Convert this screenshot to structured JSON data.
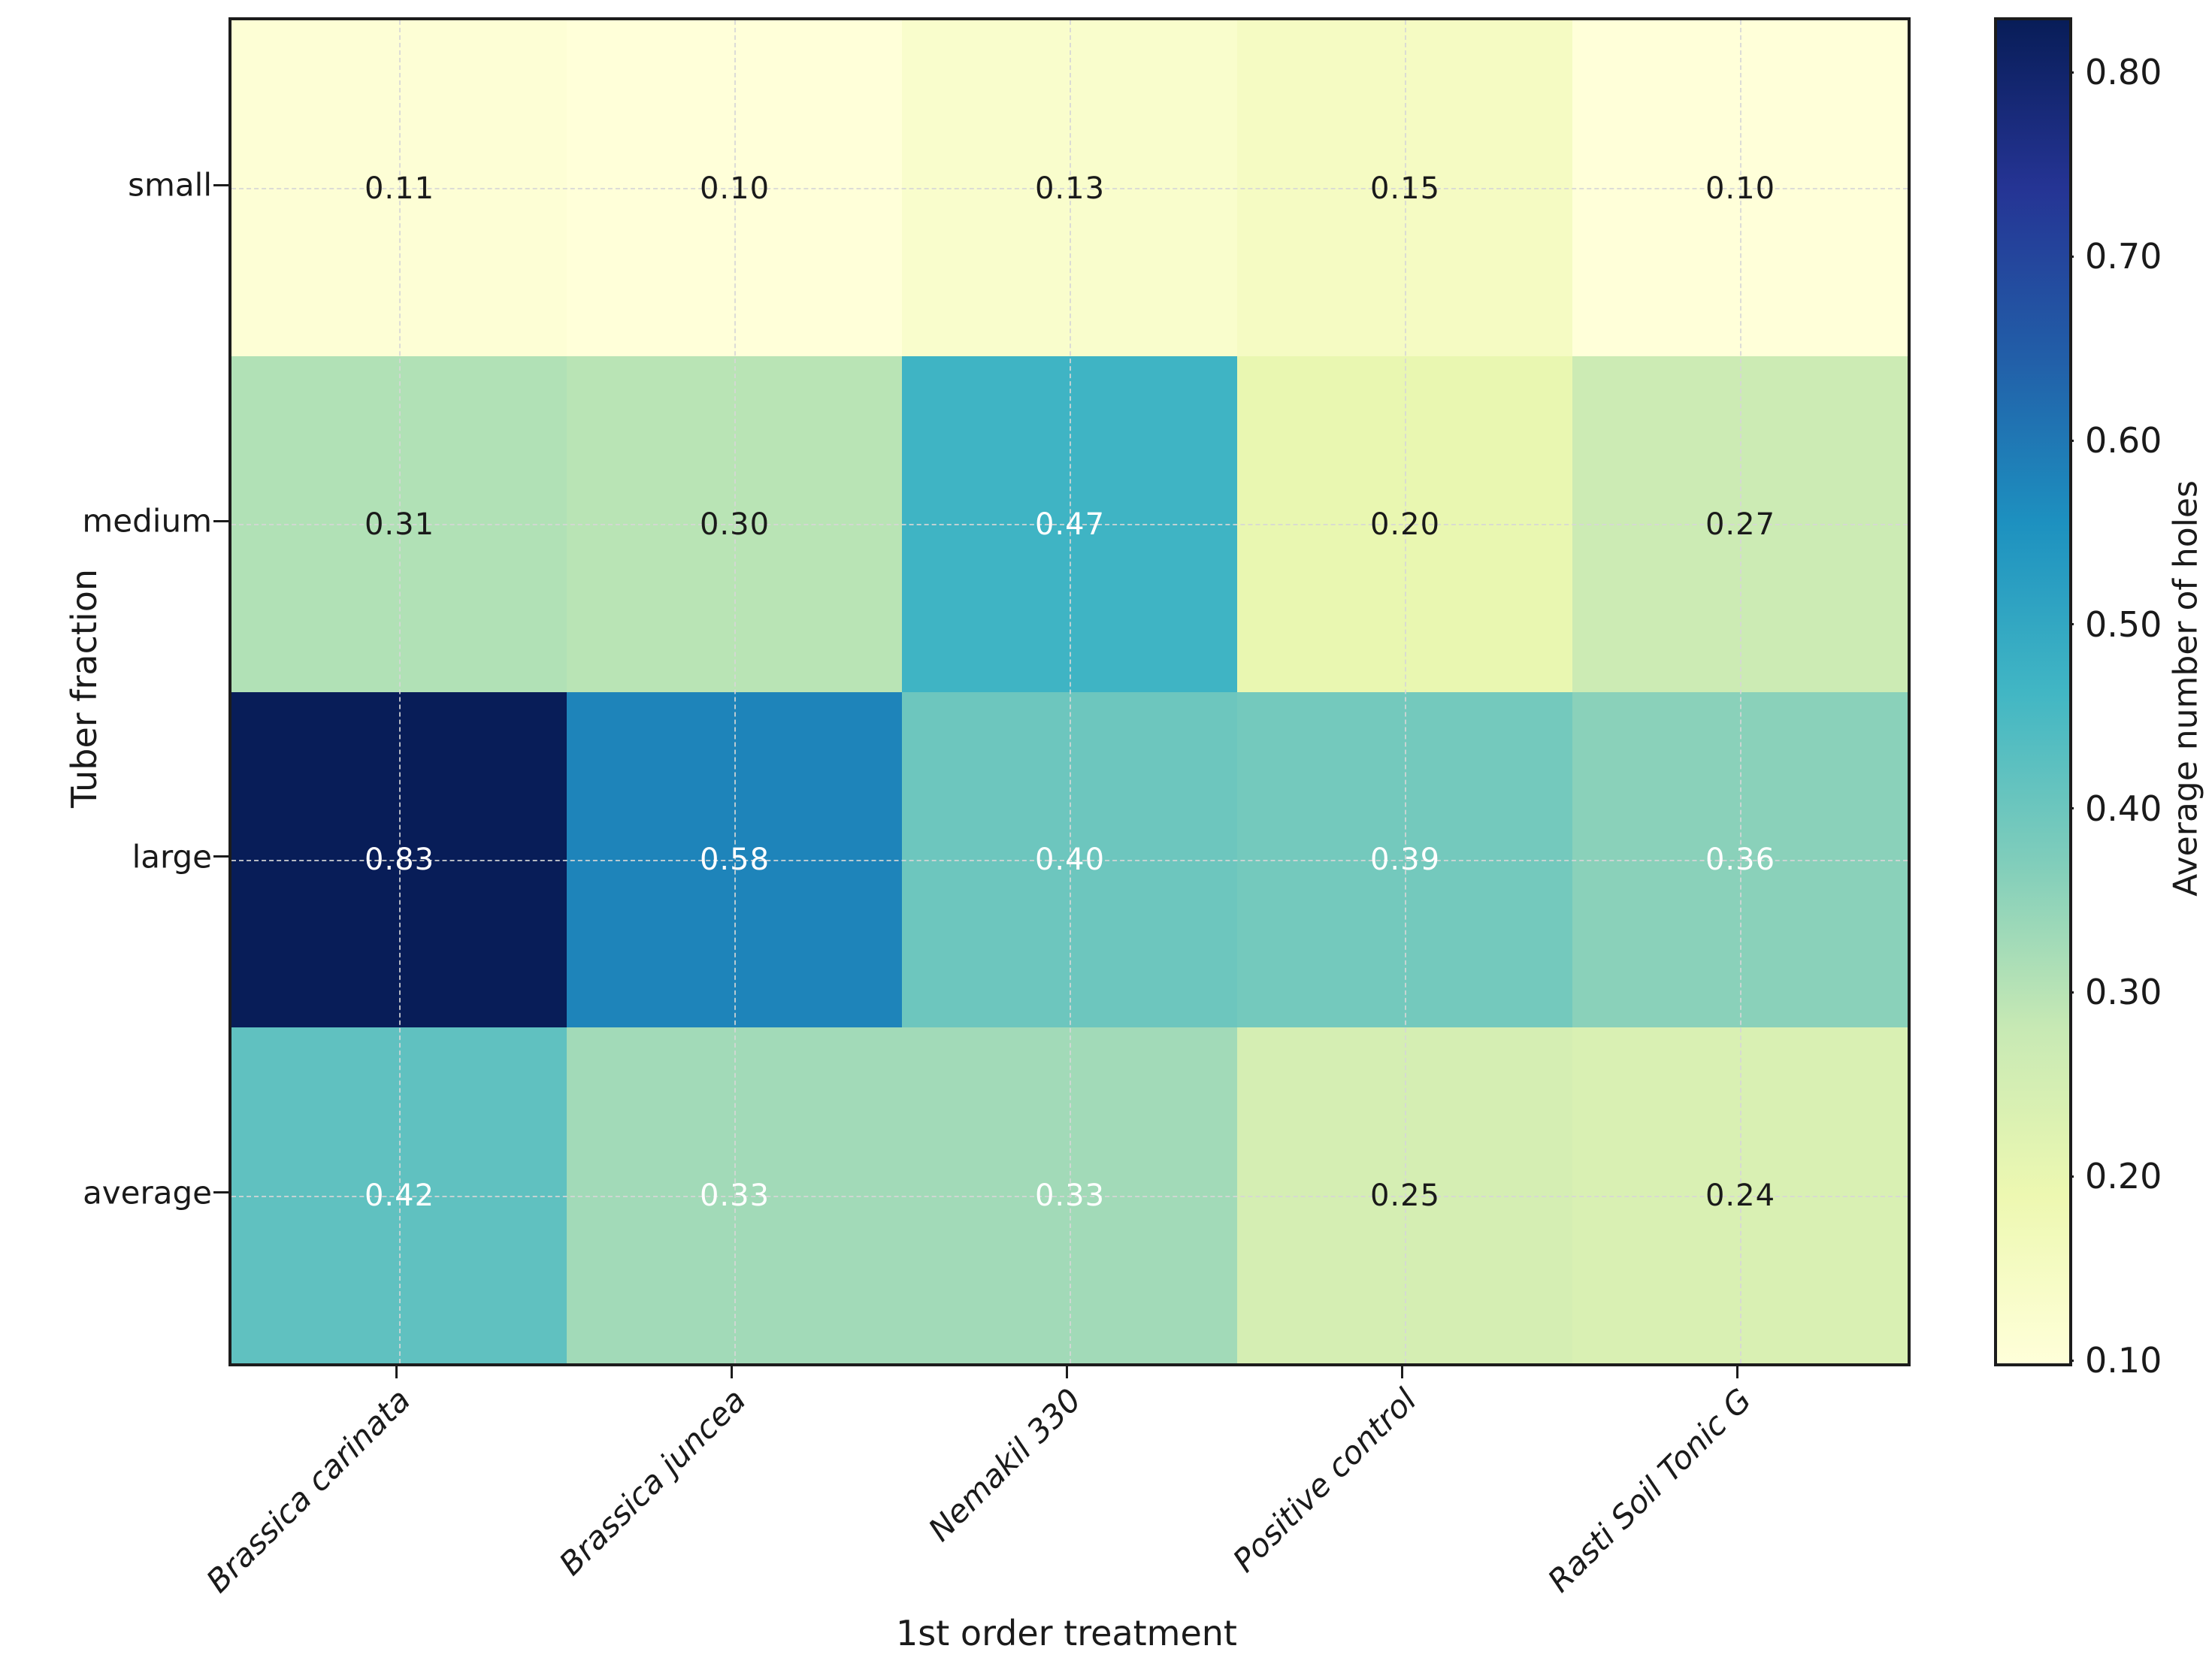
{
  "chart_data": {
    "type": "heatmap",
    "title": "",
    "xlabel": "1st order treatment",
    "ylabel": "Tuber fraction",
    "colorbar_label": "Average number of holes",
    "x_categories": [
      "Brassica carinata",
      "Brassica juncea",
      "Nemakil 330",
      "Positive control",
      "Rasti Soil Tonic G"
    ],
    "y_categories": [
      "small",
      "medium",
      "large",
      "average"
    ],
    "values": [
      [
        0.11,
        0.1,
        0.13,
        0.15,
        0.1
      ],
      [
        0.31,
        0.3,
        0.47,
        0.2,
        0.27
      ],
      [
        0.83,
        0.58,
        0.4,
        0.39,
        0.36
      ],
      [
        0.42,
        0.33,
        0.33,
        0.25,
        0.24
      ]
    ],
    "vmin": 0.1,
    "vmax": 0.83,
    "colorbar_ticks": [
      0.1,
      0.2,
      0.3,
      0.4,
      0.5,
      0.6,
      0.7,
      0.8
    ],
    "colorbar_tick_labels": [
      "0.10",
      "0.20",
      "0.30",
      "0.40",
      "0.50",
      "0.60",
      "0.70",
      "0.80"
    ],
    "colormap": "YlGnBu",
    "colormap_stops": [
      "#ffffd9",
      "#edf8b1",
      "#c7e9b4",
      "#7fcdbb",
      "#41b6c4",
      "#1d91c0",
      "#225ea8",
      "#253494",
      "#081d58"
    ],
    "grid": true,
    "gridline_style": "dashed-at-cell-centers",
    "legend_position": "right-colorbar",
    "annotation_format": "2-decimals",
    "annotation_colors": {
      "dark": "#1a1a1a",
      "light": "#ffffff"
    },
    "annotation_light_min_value": 0.33
  }
}
